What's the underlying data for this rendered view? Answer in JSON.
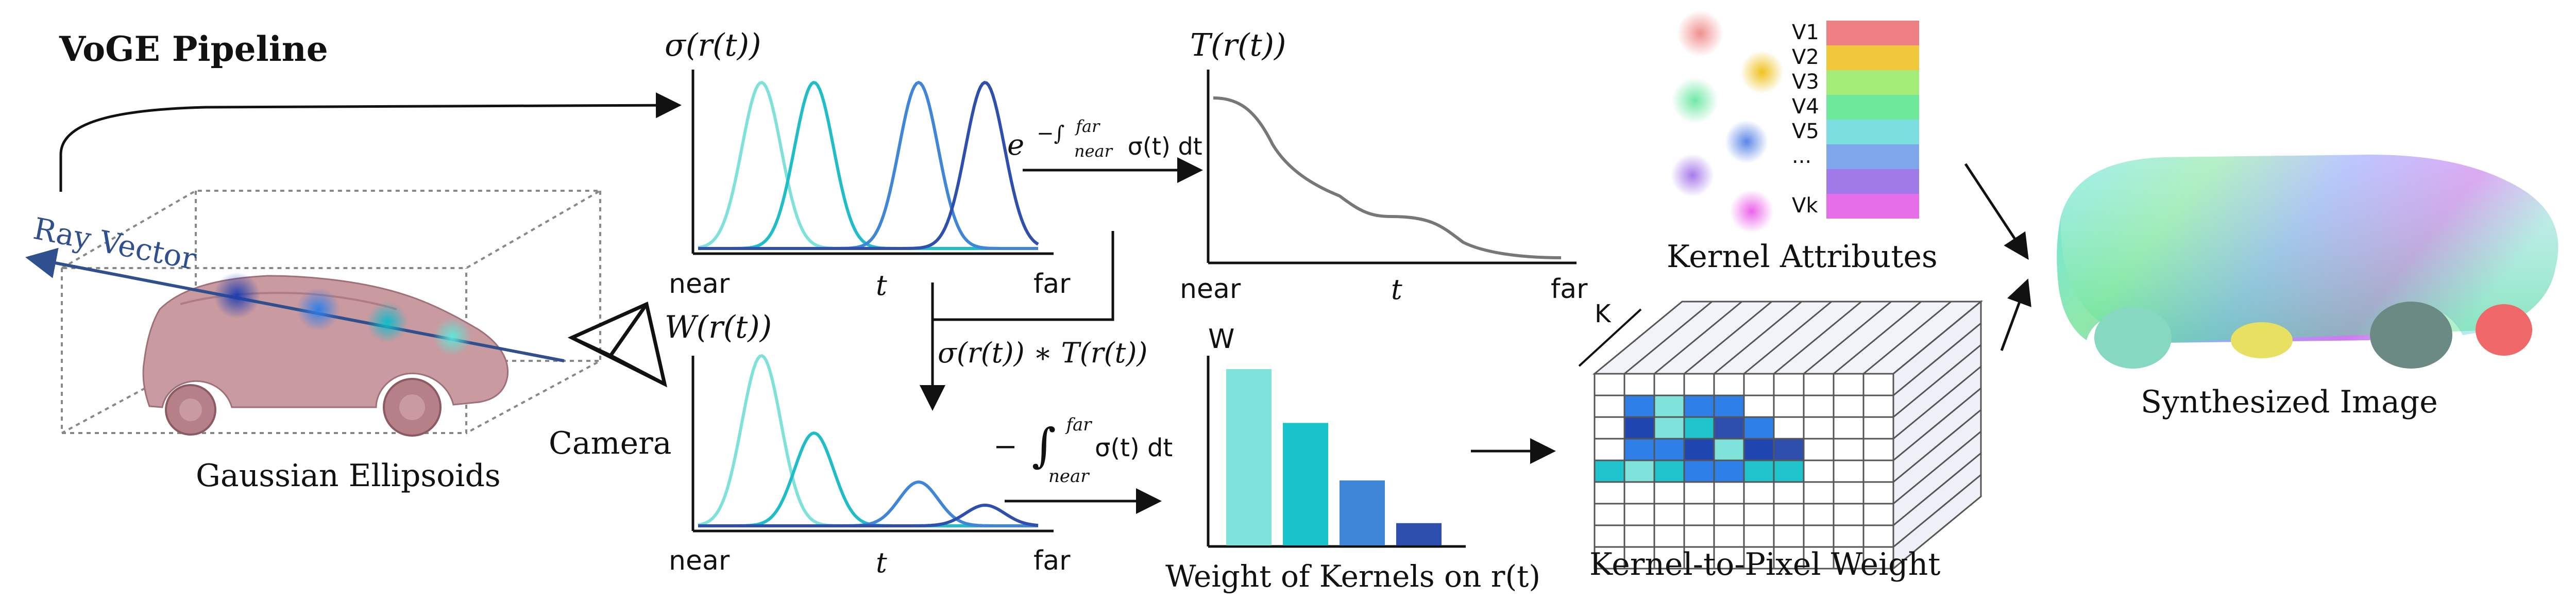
{
  "title": "VoGE Pipeline",
  "left": {
    "ray_label": "Ray Vector",
    "ellipsoids_label": "Gaussian Ellipsoids",
    "camera_label": "Camera"
  },
  "sigma_plot": {
    "ylabel": "σ(r(t))",
    "x_near": "near",
    "x_t": "t",
    "x_far": "far",
    "curve_colors": [
      "#7ee2db",
      "#1fbdc8",
      "#3f86d8",
      "#2f4fae"
    ]
  },
  "transmittance_plot": {
    "ylabel": "T(r(t))",
    "x_near": "near",
    "x_t": "t",
    "x_far": "far",
    "curve_color": "#777777"
  },
  "weight_plot": {
    "ylabel": "W(r(t))",
    "x_near": "near",
    "x_t": "t",
    "x_far": "far"
  },
  "formulas": {
    "exp_integral": "e^{−∫_{near}^{far} σ(t) dt}",
    "product": "σ(r(t)) ∗ T(r(t))",
    "neg_integral": "−∫_{near}^{far} σ(t) dt"
  },
  "kernel_bars": {
    "w_label": "W",
    "caption": "Weight of Kernels on r(t)",
    "values": [
      0.95,
      0.66,
      0.35,
      0.12
    ],
    "colors": [
      "#7fe3dc",
      "#18c3cb",
      "#3f86d8",
      "#2f4fae"
    ]
  },
  "kernel_attributes": {
    "labels": [
      "V1",
      "V2",
      "V3",
      "V4",
      "V5",
      "...",
      "Vk"
    ],
    "colors": [
      "#ee7f82",
      "#f0c63a",
      "#a4ec78",
      "#6ee89a",
      "#7cdede",
      "#7fa6ea",
      "#a07ae6",
      "#e66ee8"
    ],
    "caption": "Kernel Attributes"
  },
  "kernel_to_pixel": {
    "k_label": "K",
    "caption": "Kernel-to-Pixel Weight"
  },
  "synth_caption": "Synthesized Image"
}
